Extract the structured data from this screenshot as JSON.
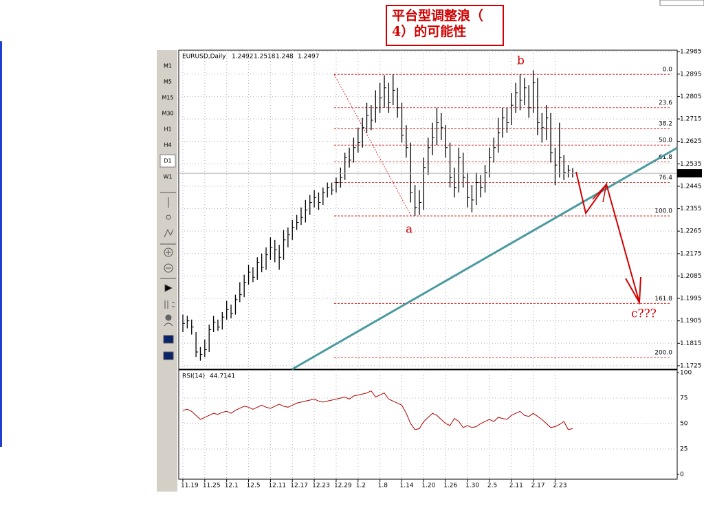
{
  "toolbar": {
    "timeframes": [
      "M1",
      "M5",
      "M15",
      "M30",
      "H1",
      "H4",
      "D1",
      "W1"
    ]
  },
  "title_lines": [
    "平台型调整浪（",
    "4）的可能性"
  ],
  "wave_labels": [
    "a",
    "b",
    "c???"
  ],
  "chart_data": [
    {
      "type": "ohlc",
      "symbol": "EURUSD,Daily",
      "last_bar": [
        1.2492,
        1.2518,
        1.248,
        1.2497
      ],
      "categories": [
        "11.19",
        null,
        null,
        null,
        null,
        "11.25",
        null,
        null,
        null,
        null,
        "12.1",
        null,
        null,
        null,
        null,
        "12.5",
        null,
        null,
        null,
        null,
        "12.11",
        null,
        null,
        null,
        null,
        "12.17",
        null,
        null,
        null,
        null,
        "12.23",
        null,
        null,
        null,
        null,
        "12.29",
        null,
        null,
        null,
        null,
        "1.2",
        null,
        null,
        null,
        null,
        "1.8",
        null,
        null,
        null,
        null,
        "1.14",
        null,
        null,
        null,
        null,
        "1.20",
        null,
        null,
        null,
        null,
        "1.26",
        null,
        null,
        null,
        null,
        "1.30",
        null,
        null,
        null,
        null,
        "2.5",
        null,
        null,
        null,
        null,
        "2.11",
        null,
        null,
        null,
        null,
        "2.17",
        null,
        null,
        null,
        null,
        "2.23",
        null,
        null,
        null,
        null
      ],
      "high": [
        1.193,
        1.1925,
        1.191,
        1.186,
        1.18,
        1.183,
        1.189,
        1.1925,
        1.191,
        1.194,
        1.1985,
        1.197,
        1.201,
        1.206,
        1.209,
        1.213,
        1.212,
        1.216,
        1.2175,
        1.22,
        1.224,
        1.223,
        1.221,
        1.227,
        1.228,
        1.231,
        1.233,
        1.236,
        1.239,
        1.241,
        1.243,
        1.242,
        1.244,
        1.246,
        1.246,
        1.248,
        1.252,
        1.258,
        1.26,
        1.264,
        1.268,
        1.272,
        1.278,
        1.277,
        1.283,
        1.286,
        1.289,
        1.286,
        1.2894,
        1.284,
        1.278,
        1.269,
        1.262,
        1.245,
        1.243,
        1.256,
        1.264,
        1.27,
        1.276,
        1.274,
        1.269,
        1.262,
        1.252,
        1.26,
        1.258,
        1.25,
        1.245,
        1.25,
        1.249,
        1.253,
        1.26,
        1.264,
        1.272,
        1.276,
        1.276,
        1.282,
        1.286,
        1.2894,
        1.288,
        1.285,
        1.291,
        1.288,
        1.274,
        1.277,
        1.274,
        1.26,
        1.27,
        1.257,
        1.253,
        1.2518
      ],
      "low": [
        1.186,
        1.1875,
        1.185,
        1.176,
        1.1745,
        1.176,
        1.178,
        1.186,
        1.1865,
        1.187,
        1.191,
        1.1915,
        1.193,
        1.198,
        1.2,
        1.205,
        1.206,
        1.207,
        1.21,
        1.211,
        1.215,
        1.214,
        1.211,
        1.215,
        1.22,
        1.223,
        1.227,
        1.229,
        1.23,
        1.233,
        1.236,
        1.235,
        1.237,
        1.24,
        1.241,
        1.242,
        1.244,
        1.247,
        1.252,
        1.254,
        1.258,
        1.26,
        1.266,
        1.267,
        1.27,
        1.274,
        1.276,
        1.274,
        1.277,
        1.272,
        1.262,
        1.256,
        1.238,
        1.2326,
        1.233,
        1.235,
        1.249,
        1.257,
        1.261,
        1.263,
        1.256,
        1.244,
        1.24,
        1.242,
        1.244,
        1.236,
        1.234,
        1.237,
        1.24,
        1.242,
        1.248,
        1.254,
        1.258,
        1.264,
        1.266,
        1.269,
        1.274,
        1.275,
        1.277,
        1.272,
        1.274,
        1.265,
        1.262,
        1.263,
        1.254,
        1.245,
        1.248,
        1.247,
        1.248,
        1.248
      ],
      "close": [
        1.1895,
        1.1905,
        1.188,
        1.178,
        1.177,
        1.179,
        1.187,
        1.19,
        1.188,
        1.192,
        1.195,
        1.1935,
        1.199,
        1.201,
        1.206,
        1.21,
        1.208,
        1.214,
        1.212,
        1.217,
        1.22,
        1.219,
        1.216,
        1.223,
        1.225,
        1.228,
        1.23,
        1.232,
        1.235,
        1.238,
        1.24,
        1.238,
        1.242,
        1.244,
        1.243,
        1.246,
        1.248,
        1.256,
        1.255,
        1.26,
        1.262,
        1.268,
        1.273,
        1.271,
        1.276,
        1.28,
        1.284,
        1.278,
        1.283,
        1.276,
        1.265,
        1.26,
        1.242,
        1.236,
        1.238,
        1.252,
        1.26,
        1.264,
        1.27,
        1.268,
        1.26,
        1.248,
        1.244,
        1.256,
        1.248,
        1.24,
        1.239,
        1.246,
        1.244,
        1.25,
        1.256,
        1.26,
        1.266,
        1.272,
        1.27,
        1.277,
        1.282,
        1.279,
        1.284,
        1.276,
        1.286,
        1.27,
        1.268,
        1.272,
        1.258,
        1.253,
        1.256,
        1.25,
        1.251,
        1.2497
      ],
      "current_price": 1.2497,
      "fib_levels": [
        {
          "label": "0.0",
          "value": 1.2894
        },
        {
          "label": "23.6",
          "value": 1.276
        },
        {
          "label": "38.2",
          "value": 1.2677
        },
        {
          "label": "50.0",
          "value": 1.261
        },
        {
          "label": "61.8",
          "value": 1.2543
        },
        {
          "label": "76.4",
          "value": 1.246
        },
        {
          "label": "100.0",
          "value": 1.2326
        },
        {
          "label": "161.8",
          "value": 1.1975
        },
        {
          "label": "200.0",
          "value": 1.1758
        }
      ],
      "ylim": [
        1.1711,
        1.2991
      ],
      "yticks": [
        1.2985,
        1.2895,
        1.2805,
        1.2715,
        1.2625,
        1.2535,
        1.2445,
        1.2355,
        1.2265,
        1.2175,
        1.2085,
        1.1995,
        1.1905,
        1.1815,
        1.1725
      ],
      "color": "#000000",
      "grid": true
    },
    {
      "type": "line",
      "name": "RSI(14)",
      "last_value": 44.7141,
      "color": "#b00000",
      "values": [
        63,
        64,
        62,
        58,
        54,
        56,
        58,
        60,
        59,
        61,
        62,
        60,
        63,
        65,
        67,
        66,
        64,
        66,
        68,
        66,
        65,
        67,
        69,
        67,
        66,
        68,
        70,
        71,
        72,
        73,
        74,
        72,
        71,
        72,
        73,
        74,
        75,
        76,
        74,
        77,
        78,
        79,
        80,
        82,
        76,
        78,
        80,
        74,
        72,
        70,
        68,
        60,
        50,
        44,
        45,
        52,
        56,
        60,
        58,
        54,
        50,
        48,
        55,
        52,
        46,
        48,
        46,
        47,
        50,
        52,
        54,
        52,
        56,
        55,
        54,
        58,
        60,
        62,
        58,
        57,
        60,
        57,
        54,
        50,
        46,
        47,
        49,
        52,
        44,
        45
      ],
      "ylim": [
        -4.7,
        102.7
      ],
      "yticks": [
        0,
        25,
        50,
        75,
        100
      ],
      "grid": true
    }
  ]
}
